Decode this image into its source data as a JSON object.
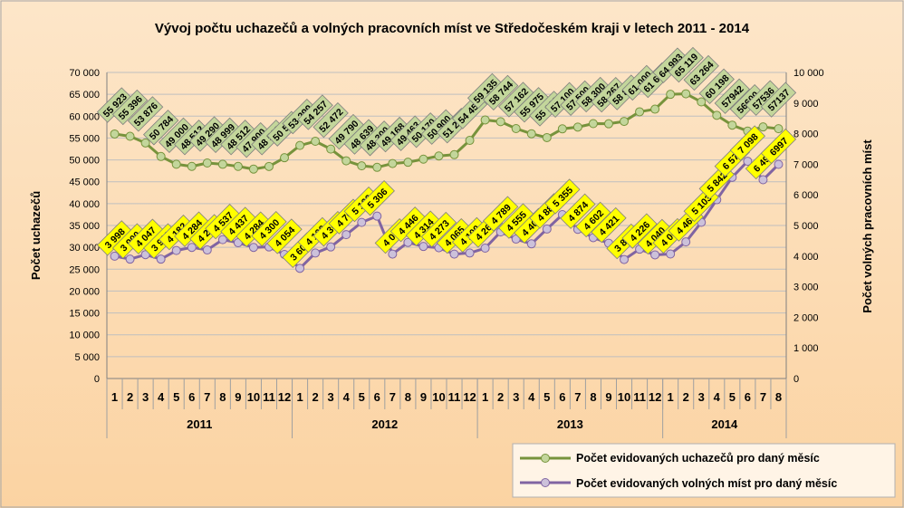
{
  "chart_data": {
    "type": "line",
    "title": "Vývoj počtu uchazečů a volných pracovních míst ve Středočeském kraji v letech 2011 - 2014",
    "ylabel_left": "Počet uchazečů",
    "ylabel_right": "Počet volných pracovních míst",
    "y_left_range": [
      0,
      70000
    ],
    "y_left_ticks": [
      "0",
      "5 000",
      "10 000",
      "15 000",
      "20 000",
      "25 000",
      "30 000",
      "35 000",
      "40 000",
      "45 000",
      "50 000",
      "55 000",
      "60 000",
      "65 000",
      "70 000"
    ],
    "y_right_range": [
      0,
      10000
    ],
    "y_right_ticks": [
      "0",
      "1 000",
      "2 000",
      "3 000",
      "4 000",
      "5 000",
      "6 000",
      "7 000",
      "8 000",
      "9 000",
      "10 000"
    ],
    "x_months": [
      "1",
      "2",
      "3",
      "4",
      "5",
      "6",
      "7",
      "8",
      "9",
      "10",
      "11",
      "12",
      "1",
      "2",
      "3",
      "4",
      "5",
      "6",
      "7",
      "8",
      "9",
      "10",
      "11",
      "12",
      "1",
      "2",
      "3",
      "4",
      "5",
      "6",
      "7",
      "8",
      "9",
      "10",
      "11",
      "12",
      "1",
      "2",
      "3",
      "4",
      "5",
      "6",
      "7",
      "8"
    ],
    "x_years": [
      {
        "label": "2011",
        "count": 12
      },
      {
        "label": "2012",
        "count": 12
      },
      {
        "label": "2013",
        "count": 12
      },
      {
        "label": "2014",
        "count": 8
      }
    ],
    "grid": true,
    "legend_position": "bottom-right",
    "series": [
      {
        "name": "Počet evidovaných uchazečů pro daný měsíc",
        "axis": "left",
        "color": "#77933c",
        "marker_color": "#c3d69b",
        "label_bg": "#c3d69b",
        "values": [
          55923,
          55396,
          53876,
          50784,
          49000,
          48513,
          49290,
          48999,
          48512,
          47900,
          48500,
          50500,
          53299,
          54257,
          52472,
          49790,
          48639,
          48300,
          49168,
          49463,
          50170,
          50900,
          51200,
          54458,
          59135,
          58744,
          57162,
          55975,
          55100,
          57100,
          57500,
          58300,
          58267,
          58800,
          61000,
          61600,
          64993,
          65119,
          63264,
          60198,
          57942,
          56600,
          57536,
          57137
        ],
        "labels": [
          "55 923",
          "55 396",
          "53 876",
          "50 784",
          "49 000",
          "48 513",
          "49 290",
          "48 999",
          "48 512",
          "47 900",
          "48 500",
          "50 500",
          "53 299",
          "54 257",
          "52 472",
          "49 790",
          "48 639",
          "48 300",
          "49 168",
          "49 463",
          "50 170",
          "50 900",
          "51 200",
          "54 458",
          "59 135",
          "58 744",
          "57 162",
          "55 975",
          "55 100",
          "57 100",
          "57 500",
          "58 300",
          "58 267",
          "58 800",
          "61 000",
          "61 600",
          "64 993",
          "65 119",
          "63 264",
          "60 198",
          "57942",
          "56600",
          "57536",
          "57137"
        ]
      },
      {
        "name": "Počet evidovaných volných míst pro daný měsíc",
        "axis": "right",
        "color": "#8064a2",
        "marker_color": "#ccc1da",
        "label_bg": "#ffff00",
        "values": [
          3998,
          3900,
          4047,
          3900,
          4182,
          4284,
          4200,
          4537,
          4437,
          4284,
          4300,
          4054,
          3600,
          4100,
          4300,
          4700,
          5100,
          5306,
          4065,
          4446,
          4314,
          4273,
          4065,
          4100,
          4260,
          4789,
          4555,
          4400,
          4884,
          5355,
          4874,
          4602,
          4421,
          3888,
          4226,
          4040,
          4068,
          4463,
          5103,
          5842,
          6573,
          7098,
          6494,
          6997
        ],
        "labels": [
          "3 998",
          "3 900",
          "4 047",
          "3 900",
          "4 182",
          "4 284",
          "4 200",
          "4 537",
          "4 437",
          "4 284",
          "4 300",
          "4 054",
          "3 600",
          "4 100",
          "4 300",
          "4 700",
          "5 100",
          "5 306",
          "4 065",
          "4 446",
          "4 314",
          "4 273",
          "4 065",
          "4 100",
          "4 260",
          "4 789",
          "4 555",
          "4 400",
          "4 884",
          "5 355",
          "4 874",
          "4 602",
          "4 421",
          "3 888",
          "4 226",
          "4 040",
          "4 068",
          "4 463",
          "5 103",
          "5 842",
          "6 573",
          "7 098",
          "6 494",
          "6997"
        ]
      }
    ]
  }
}
